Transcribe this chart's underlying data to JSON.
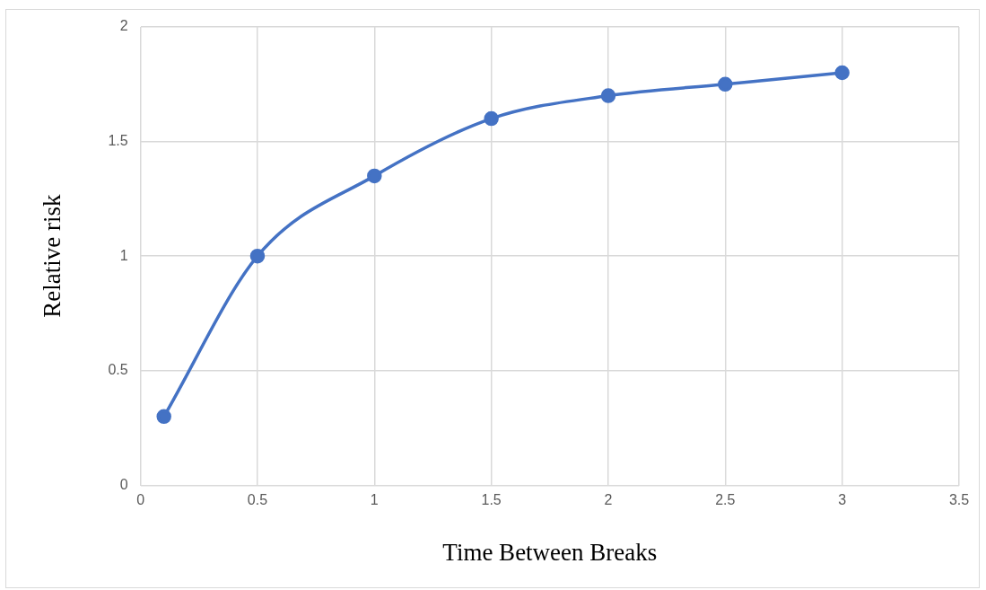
{
  "chart_data": {
    "type": "line",
    "xlabel": "Time Between Breaks",
    "ylabel": "Relative risk",
    "x": [
      0.1,
      0.5,
      1,
      1.5,
      2,
      2.5,
      3
    ],
    "series": [
      {
        "color": "#4472c4",
        "values": [
          0.3,
          1,
          1.35,
          1.6,
          1.7,
          1.75,
          1.8
        ]
      }
    ],
    "xlim": [
      0,
      3.5
    ],
    "xticks": [
      0,
      0.5,
      1,
      1.5,
      2,
      2.5,
      3,
      3.5
    ],
    "ylim": [
      0,
      2
    ],
    "yticks": [
      0,
      0.5,
      1,
      1.5,
      2
    ],
    "grid": true,
    "legend": false,
    "marker": "circle",
    "line_style": "solid"
  }
}
